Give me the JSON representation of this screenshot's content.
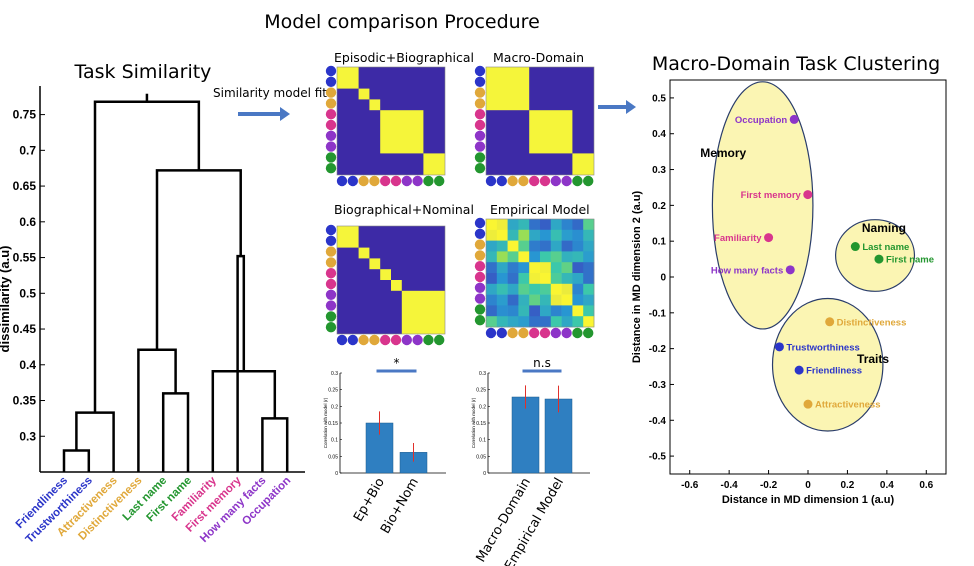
{
  "titles": {
    "main": "Model comparison Procedure",
    "left": "Task Similarity",
    "right": "Macro-Domain Task Clustering",
    "arrow_label": "Similarity model fit"
  },
  "colors": {
    "blue": "#2b35c9",
    "orange": "#e0a83a",
    "green": "#23962f",
    "magenta": "#d8358d",
    "purple": "#8d35c8",
    "matrix_bg": "#3d2aa6",
    "matrix_block": "#f5f53a",
    "bar": "#2f7fc1",
    "ellipse_fill": "#fbf5b3",
    "ellipse_stroke": "#2a3d6a",
    "arrow": "#4a78c4"
  },
  "chart_data": [
    {
      "type": "dendrogram",
      "title": "Task Similarity",
      "ylabel": "dissimilarity (a.u)",
      "ylim": [
        0.25,
        0.79
      ],
      "yticks": [
        "0.3",
        "0.35",
        "0.4",
        "0.45",
        "0.5",
        "0.55",
        "0.6",
        "0.65",
        "0.7",
        "0.75"
      ],
      "leaves": [
        {
          "label": "Friendliness",
          "color": "blue"
        },
        {
          "label": "Trustworthiness",
          "color": "blue"
        },
        {
          "label": "Attractiveness",
          "color": "orange"
        },
        {
          "label": "Distinctiveness",
          "color": "orange"
        },
        {
          "label": "Last name",
          "color": "green"
        },
        {
          "label": "First name",
          "color": "green"
        },
        {
          "label": "Familiarity",
          "color": "magenta"
        },
        {
          "label": "First memory",
          "color": "magenta"
        },
        {
          "label": "How many facts",
          "color": "purple"
        },
        {
          "label": "Occupation",
          "color": "purple"
        }
      ],
      "merges": [
        {
          "a": 0,
          "b": 1,
          "height": 0.28
        },
        {
          "a": 10,
          "b": 2,
          "height": 0.333
        },
        {
          "a": 4,
          "b": 5,
          "height": 0.36
        },
        {
          "a": 12,
          "b": 3,
          "height": 0.421
        },
        {
          "a": 8,
          "b": 9,
          "height": 0.325
        },
        {
          "a": 14,
          "b": 6,
          "height": 0.391
        },
        {
          "a": 15,
          "b": 7,
          "height": 0.552
        },
        {
          "a": 13,
          "b": 16,
          "height": 0.672
        },
        {
          "a": 11,
          "b": 17,
          "height": 0.768
        }
      ]
    },
    {
      "type": "heatmap",
      "title": "Episodic+Biographical",
      "dot_colors": [
        "blue",
        "blue",
        "orange",
        "orange",
        "magenta",
        "magenta",
        "purple",
        "purple",
        "green",
        "green"
      ],
      "blocks": [
        [
          0,
          1
        ],
        [
          2,
          2
        ],
        [
          3,
          3
        ],
        [
          4,
          7
        ],
        [
          8,
          9
        ]
      ]
    },
    {
      "type": "heatmap",
      "title": "Macro-Domain",
      "dot_colors": [
        "blue",
        "blue",
        "orange",
        "orange",
        "magenta",
        "magenta",
        "purple",
        "purple",
        "green",
        "green"
      ],
      "blocks": [
        [
          0,
          3
        ],
        [
          4,
          7
        ],
        [
          8,
          9
        ]
      ]
    },
    {
      "type": "heatmap",
      "title": "Biographical+Nominal",
      "dot_colors": [
        "blue",
        "blue",
        "orange",
        "orange",
        "magenta",
        "magenta",
        "purple",
        "purple",
        "green",
        "green"
      ],
      "blocks": [
        [
          0,
          1
        ],
        [
          2,
          2
        ],
        [
          3,
          3
        ],
        [
          4,
          4
        ],
        [
          5,
          5
        ],
        [
          6,
          9
        ]
      ]
    },
    {
      "type": "heatmap",
      "title": "Empirical Model",
      "dot_colors": [
        "blue",
        "blue",
        "orange",
        "orange",
        "magenta",
        "magenta",
        "purple",
        "purple",
        "green",
        "green"
      ],
      "values": [
        [
          1.0,
          0.88,
          0.45,
          0.5,
          0.3,
          0.25,
          0.45,
          0.35,
          0.28,
          0.6
        ],
        [
          0.88,
          1.0,
          0.5,
          0.72,
          0.45,
          0.4,
          0.52,
          0.42,
          0.38,
          0.5
        ],
        [
          0.45,
          0.5,
          1.0,
          0.6,
          0.33,
          0.3,
          0.45,
          0.28,
          0.36,
          0.45
        ],
        [
          0.5,
          0.72,
          0.6,
          1.0,
          0.4,
          0.55,
          0.6,
          0.48,
          0.5,
          0.42
        ],
        [
          0.3,
          0.45,
          0.33,
          0.4,
          1.0,
          0.92,
          0.55,
          0.62,
          0.25,
          0.3
        ],
        [
          0.25,
          0.4,
          0.3,
          0.55,
          0.92,
          1.0,
          0.58,
          0.5,
          0.45,
          0.3
        ],
        [
          0.45,
          0.52,
          0.45,
          0.6,
          0.55,
          0.58,
          1.0,
          0.85,
          0.35,
          0.55
        ],
        [
          0.35,
          0.42,
          0.28,
          0.48,
          0.62,
          0.5,
          0.85,
          1.0,
          0.4,
          0.45
        ],
        [
          0.28,
          0.38,
          0.36,
          0.5,
          0.25,
          0.45,
          0.35,
          0.4,
          1.0,
          0.55
        ],
        [
          0.6,
          0.5,
          0.45,
          0.42,
          0.3,
          0.3,
          0.55,
          0.45,
          0.55,
          1.0
        ]
      ]
    },
    {
      "type": "bar",
      "categories": [
        "Ep+Bio",
        "Bio+Nom"
      ],
      "values": [
        0.15,
        0.062
      ],
      "errors": [
        0.035,
        0.028
      ],
      "ylabel": "Correlation with model (r)",
      "ylim": [
        0,
        0.3
      ],
      "yticks": [
        "0",
        "0.05",
        "0.1",
        "0.15",
        "0.2",
        "0.25",
        "0.3"
      ],
      "significance": "*"
    },
    {
      "type": "bar",
      "categories": [
        "Macro-Domain",
        "Empirical Model"
      ],
      "values": [
        0.228,
        0.222
      ],
      "errors": [
        0.035,
        0.04
      ],
      "ylabel": "Correlation with model (r)",
      "ylim": [
        0,
        0.3
      ],
      "yticks": [
        "0",
        "0.05",
        "0.1",
        "0.15",
        "0.2",
        "0.25",
        "0.3"
      ],
      "significance": "n.s"
    },
    {
      "type": "scatter",
      "title": "Macro-Domain Task Clustering",
      "xlabel": "Distance in MD dimension 1 (a.u)",
      "ylabel": "Distance in MD dimension 2 (a.u)",
      "xlim": [
        -0.7,
        0.7
      ],
      "ylim": [
        -0.55,
        0.55
      ],
      "xticks": [
        "-0.6",
        "-0.4",
        "-0.2",
        "0",
        "0.2",
        "0.4",
        "0.6"
      ],
      "yticks": [
        "0.5",
        "0.4",
        "0.3",
        "0.2",
        "0.1",
        "0",
        "-0.1",
        "-0.2",
        "-0.3",
        "-0.4",
        "-0.5"
      ],
      "points": [
        {
          "label": "Occupation",
          "x": -0.07,
          "y": 0.44,
          "color": "purple"
        },
        {
          "label": "First memory",
          "x": -0.001,
          "y": 0.23,
          "color": "magenta"
        },
        {
          "label": "Familiarity",
          "x": -0.2,
          "y": 0.11,
          "color": "magenta"
        },
        {
          "label": "How many facts",
          "x": -0.09,
          "y": 0.02,
          "color": "purple"
        },
        {
          "label": "Last name",
          "x": 0.24,
          "y": 0.085,
          "color": "green"
        },
        {
          "label": "First name",
          "x": 0.36,
          "y": 0.05,
          "color": "green"
        },
        {
          "label": "Distinctiveness",
          "x": 0.11,
          "y": -0.125,
          "color": "orange"
        },
        {
          "label": "Trustworthiness",
          "x": -0.145,
          "y": -0.195,
          "color": "blue"
        },
        {
          "label": "Friendliness",
          "x": -0.045,
          "y": -0.26,
          "color": "blue"
        },
        {
          "label": "Attractiveness",
          "x": 0.0,
          "y": -0.355,
          "color": "orange"
        }
      ],
      "clusters": [
        {
          "label": "Memory",
          "cx": -0.23,
          "cy": 0.2,
          "rx": 0.255,
          "ry": 0.345
        },
        {
          "label": "Naming",
          "cx": 0.34,
          "cy": 0.06,
          "rx": 0.2,
          "ry": 0.1
        },
        {
          "label": "Traits",
          "cx": 0.1,
          "cy": -0.245,
          "rx": 0.28,
          "ry": 0.185
        }
      ]
    }
  ]
}
